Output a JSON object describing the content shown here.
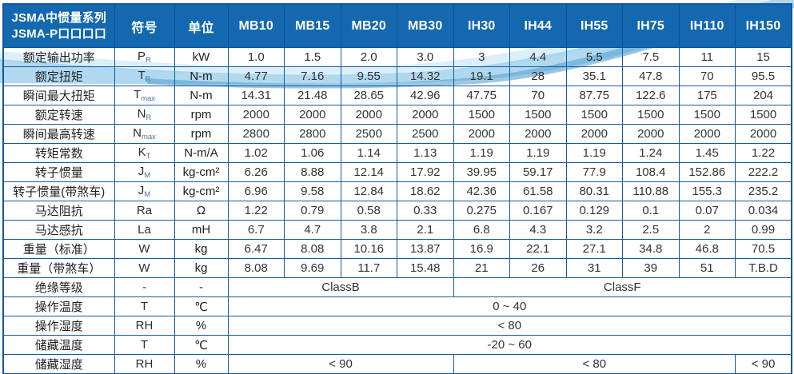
{
  "colors": {
    "header_bg": "#1368b0",
    "border": "#15599f",
    "wave_light": "#d6ecf8",
    "wave_main": "#9ccfeb",
    "wave_steel": "#5aa2d0",
    "header_text": "#ffffff",
    "body_text": "#2b2b2b"
  },
  "header": {
    "series_title_line1": "JSMA中惯量系列",
    "series_title_line2": "JSMA-P口口口口",
    "symbol_col": "符号",
    "unit_col": "单位",
    "models": [
      "MB10",
      "MB15",
      "MB20",
      "MB30",
      "IH30",
      "IH44",
      "IH55",
      "IH75",
      "IH110",
      "IH150"
    ]
  },
  "rows": [
    {
      "label": "额定输出功率",
      "symbol": {
        "base": "P",
        "sub": "R"
      },
      "unit": "kW",
      "values": [
        "1.0",
        "1.5",
        "2.0",
        "3.0",
        "3",
        "4.4",
        "5.5",
        "7.5",
        "11",
        "15"
      ]
    },
    {
      "label": "额定扭矩",
      "symbol": {
        "base": "T",
        "sub": "R"
      },
      "unit": "N-m",
      "values": [
        "4.77",
        "7.16",
        "9.55",
        "14.32",
        "19.1",
        "28",
        "35.1",
        "47.8",
        "70",
        "95.5"
      ]
    },
    {
      "label": "瞬间最大扭矩",
      "symbol": {
        "base": "T",
        "sub": "max"
      },
      "unit": "N-m",
      "values": [
        "14.31",
        "21.48",
        "28.65",
        "42.96",
        "47.75",
        "70",
        "87.75",
        "122.6",
        "175",
        "204"
      ]
    },
    {
      "label": "额定转速",
      "symbol": {
        "base": "N",
        "sub": "R"
      },
      "unit": "rpm",
      "values": [
        "2000",
        "2000",
        "2000",
        "2000",
        "1500",
        "1500",
        "1500",
        "1500",
        "1500",
        "1500"
      ]
    },
    {
      "label": "瞬间最高转速",
      "symbol": {
        "base": "N",
        "sub": "max"
      },
      "unit": "rpm",
      "values": [
        "2800",
        "2800",
        "2500",
        "2500",
        "2000",
        "2000",
        "2000",
        "2000",
        "2000",
        "2000"
      ]
    },
    {
      "label": "转矩常数",
      "symbol": {
        "base": "K",
        "sub": "T"
      },
      "unit": "N-m/A",
      "values": [
        "1.02",
        "1.06",
        "1.14",
        "1.13",
        "1.19",
        "1.19",
        "1.19",
        "1.24",
        "1.45",
        "1.22"
      ]
    },
    {
      "label": "转子惯量",
      "symbol": {
        "base": "J",
        "sub": "M"
      },
      "unit": "kg-cm²",
      "values": [
        "6.26",
        "8.88",
        "12.14",
        "17.92",
        "39.95",
        "59.17",
        "77.9",
        "108.4",
        "152.86",
        "222.2"
      ]
    },
    {
      "label": "转子惯量(带煞车)",
      "symbol": {
        "base": "J",
        "sub": "M"
      },
      "unit": "kg-cm²",
      "values": [
        "6.96",
        "9.58",
        "12.84",
        "18.62",
        "42.36",
        "61.58",
        "80.31",
        "110.88",
        "155.3",
        "235.2"
      ]
    },
    {
      "label": "马达阻抗",
      "symbol": {
        "base": "Ra"
      },
      "unit": "Ω",
      "values": [
        "1.22",
        "0.79",
        "0.58",
        "0.33",
        "0.275",
        "0.167",
        "0.129",
        "0.1",
        "0.07",
        "0.034"
      ]
    },
    {
      "label": "马达感抗",
      "symbol": {
        "base": "La"
      },
      "unit": "mH",
      "values": [
        "6.7",
        "4.7",
        "3.8",
        "2.1",
        "6.8",
        "4.3",
        "3.2",
        "2.5",
        "2",
        "0.99"
      ]
    },
    {
      "label": "重量（标准）",
      "symbol": {
        "base": "W"
      },
      "unit": "kg",
      "values": [
        "6.47",
        "8.08",
        "10.16",
        "13.87",
        "16.9",
        "22.1",
        "27.1",
        "34.8",
        "46.8",
        "70.5"
      ]
    },
    {
      "label": "重量（带煞车）",
      "symbol": {
        "base": "W"
      },
      "unit": "kg",
      "values": [
        "8.08",
        "9.69",
        "11.7",
        "15.48",
        "21",
        "26",
        "31",
        "39",
        "51",
        "T.B.D"
      ]
    },
    {
      "label": "绝缘等级",
      "symbol": {
        "base": "-"
      },
      "unit": "-",
      "merged": [
        {
          "text": "ClassB",
          "span": 4
        },
        {
          "text": "ClassF",
          "span": 6
        }
      ]
    },
    {
      "label": "操作温度",
      "symbol": {
        "base": "T"
      },
      "unit": "℃",
      "merged": [
        {
          "text": "0 ~ 40",
          "span": 10
        }
      ]
    },
    {
      "label": "操作湿度",
      "symbol": {
        "base": "RH"
      },
      "unit": "%",
      "merged": [
        {
          "text": "< 80",
          "span": 10
        }
      ]
    },
    {
      "label": "储藏温度",
      "symbol": {
        "base": "T"
      },
      "unit": "℃",
      "merged": [
        {
          "text": "-20 ~ 60",
          "span": 10
        }
      ]
    },
    {
      "label": "储藏湿度",
      "symbol": {
        "base": "RH"
      },
      "unit": "%",
      "merged": [
        {
          "text": "< 90",
          "span": 4
        },
        {
          "text": "< 80",
          "span": 5
        },
        {
          "text": "< 90",
          "span": 1
        }
      ]
    }
  ]
}
